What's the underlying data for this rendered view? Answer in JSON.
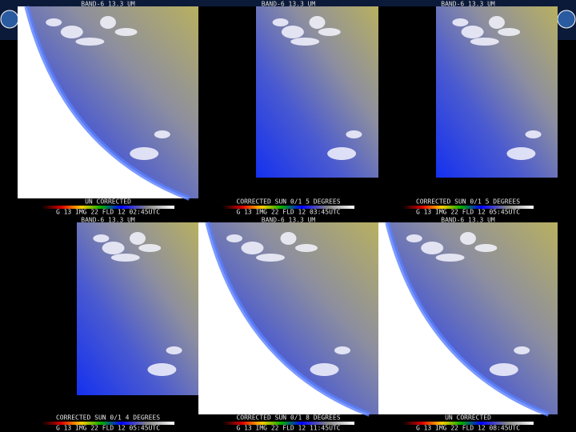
{
  "panels": [
    {
      "header": "BAND-6 13.3 UM",
      "caption": "UN CORRECTED",
      "footer": "G 13 IMG 22 FLD 12 02:45UTC"
    },
    {
      "header": "BAND-6 13.3 UM",
      "caption": "CORRECTED SUN 0/1 5 DEGREES",
      "footer": "G 13 IMG 22 FLD 12 03:45UTC"
    },
    {
      "header": "BAND-6 13.3 UM",
      "caption": "CORRECTED SUN 0/1 5 DEGREES",
      "footer": "G 13 IMG 22 FLD 12 05:45UTC"
    },
    {
      "header": "BAND-6 13.3 UM",
      "caption": "CORRECTED SUN 0/1 4 DEGREES",
      "footer": "G 13 IMG 22 FLD 12 05:45UTC"
    },
    {
      "header": "BAND-6 13.3 UM",
      "caption": "CORRECTED SUN 0/1 8 DEGREES",
      "footer": "G 13 IMG 22 FLD 12 11:45UTC"
    },
    {
      "header": "BAND-6 13.3 UM",
      "caption": "UN CORRECTED",
      "footer": "G 13 IMG 22 FLD 12 08:45UTC"
    }
  ]
}
